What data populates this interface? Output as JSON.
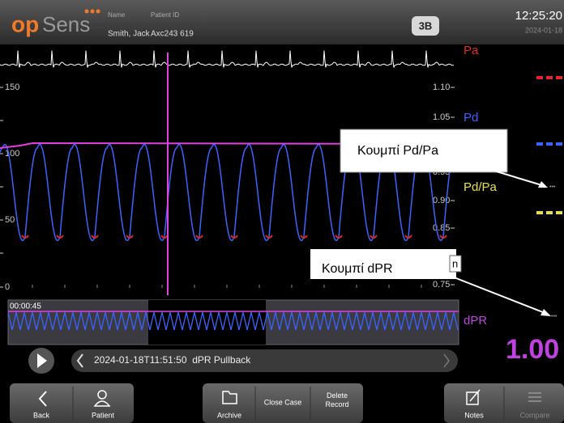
{
  "header": {
    "logo_op": "op",
    "logo_sens": "Sens",
    "name_label": "Name",
    "patient_id_label": "Patient ID",
    "name": "Smith, Jack",
    "patient_id": "Axc243 619",
    "room": "3B",
    "time": "12:25:20",
    "date": "2024-01-18"
  },
  "graph": {
    "left_ticks": [
      "150",
      "100",
      "50",
      "0"
    ],
    "right_ticks": [
      "1.10",
      "1.05",
      "0.95",
      "0.90",
      "0.85",
      "0.75"
    ]
  },
  "panel": {
    "pa": "Pa",
    "pd": "Pd",
    "pdpa": "Pd/Pa",
    "dpr": "dPR",
    "dpr_value": "1.00",
    "more1": "•••",
    "more2": "•••"
  },
  "callouts": [
    {
      "label": "Κουμπί Pd/Pa"
    },
    {
      "label": "Κουμπί dPR",
      "tail": "n"
    }
  ],
  "trend": {
    "time": "00:00:45"
  },
  "playback": {
    "recording": "2024-01-18T11:51:50  dPR Pullback"
  },
  "toolbar": {
    "back": "Back",
    "patient": "Patient",
    "archive": "Archive",
    "close_case": "Close Case",
    "delete_record": "Delete Record",
    "notes": "Notes",
    "compare": "Compare"
  }
}
